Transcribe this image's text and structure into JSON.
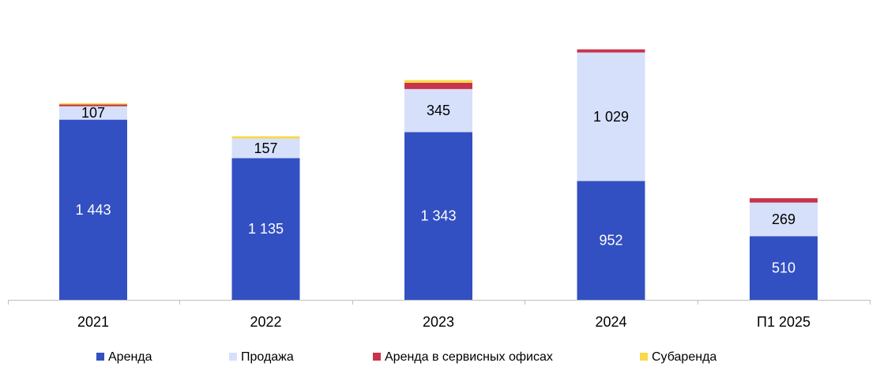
{
  "chart_data": {
    "type": "bar",
    "stacked": true,
    "categories": [
      "2021",
      "2022",
      "2023",
      "2024",
      "П1 2025"
    ],
    "series": [
      {
        "name": "Аренда",
        "color": "#3350c2",
        "label_color": "#ffffff",
        "values": [
          1443,
          1135,
          1343,
          952,
          510
        ],
        "labels": [
          "1 443",
          "1 135",
          "1 343",
          "952",
          "510"
        ]
      },
      {
        "name": "Продажа",
        "color": "#d6e0fb",
        "label_color": "#000000",
        "values": [
          107,
          157,
          345,
          1029,
          269
        ],
        "labels": [
          "107",
          "157",
          "345",
          "1 029",
          "269"
        ]
      },
      {
        "name": "Аренда в сервисных офисах",
        "color": "#c8344c",
        "label_color": "#000000",
        "values": [
          14,
          0,
          50,
          25,
          35
        ],
        "labels": [
          "",
          "",
          "",
          "",
          ""
        ]
      },
      {
        "name": "Субаренда",
        "color": "#f9d94a",
        "label_color": "#000000",
        "values": [
          11,
          18,
          22,
          0,
          0
        ],
        "labels": [
          "",
          "",
          "",
          "",
          ""
        ]
      }
    ],
    "ylim": [
      0,
      2000
    ],
    "grid": false,
    "legend_position": "bottom",
    "title": "",
    "xlabel": "",
    "ylabel": ""
  }
}
